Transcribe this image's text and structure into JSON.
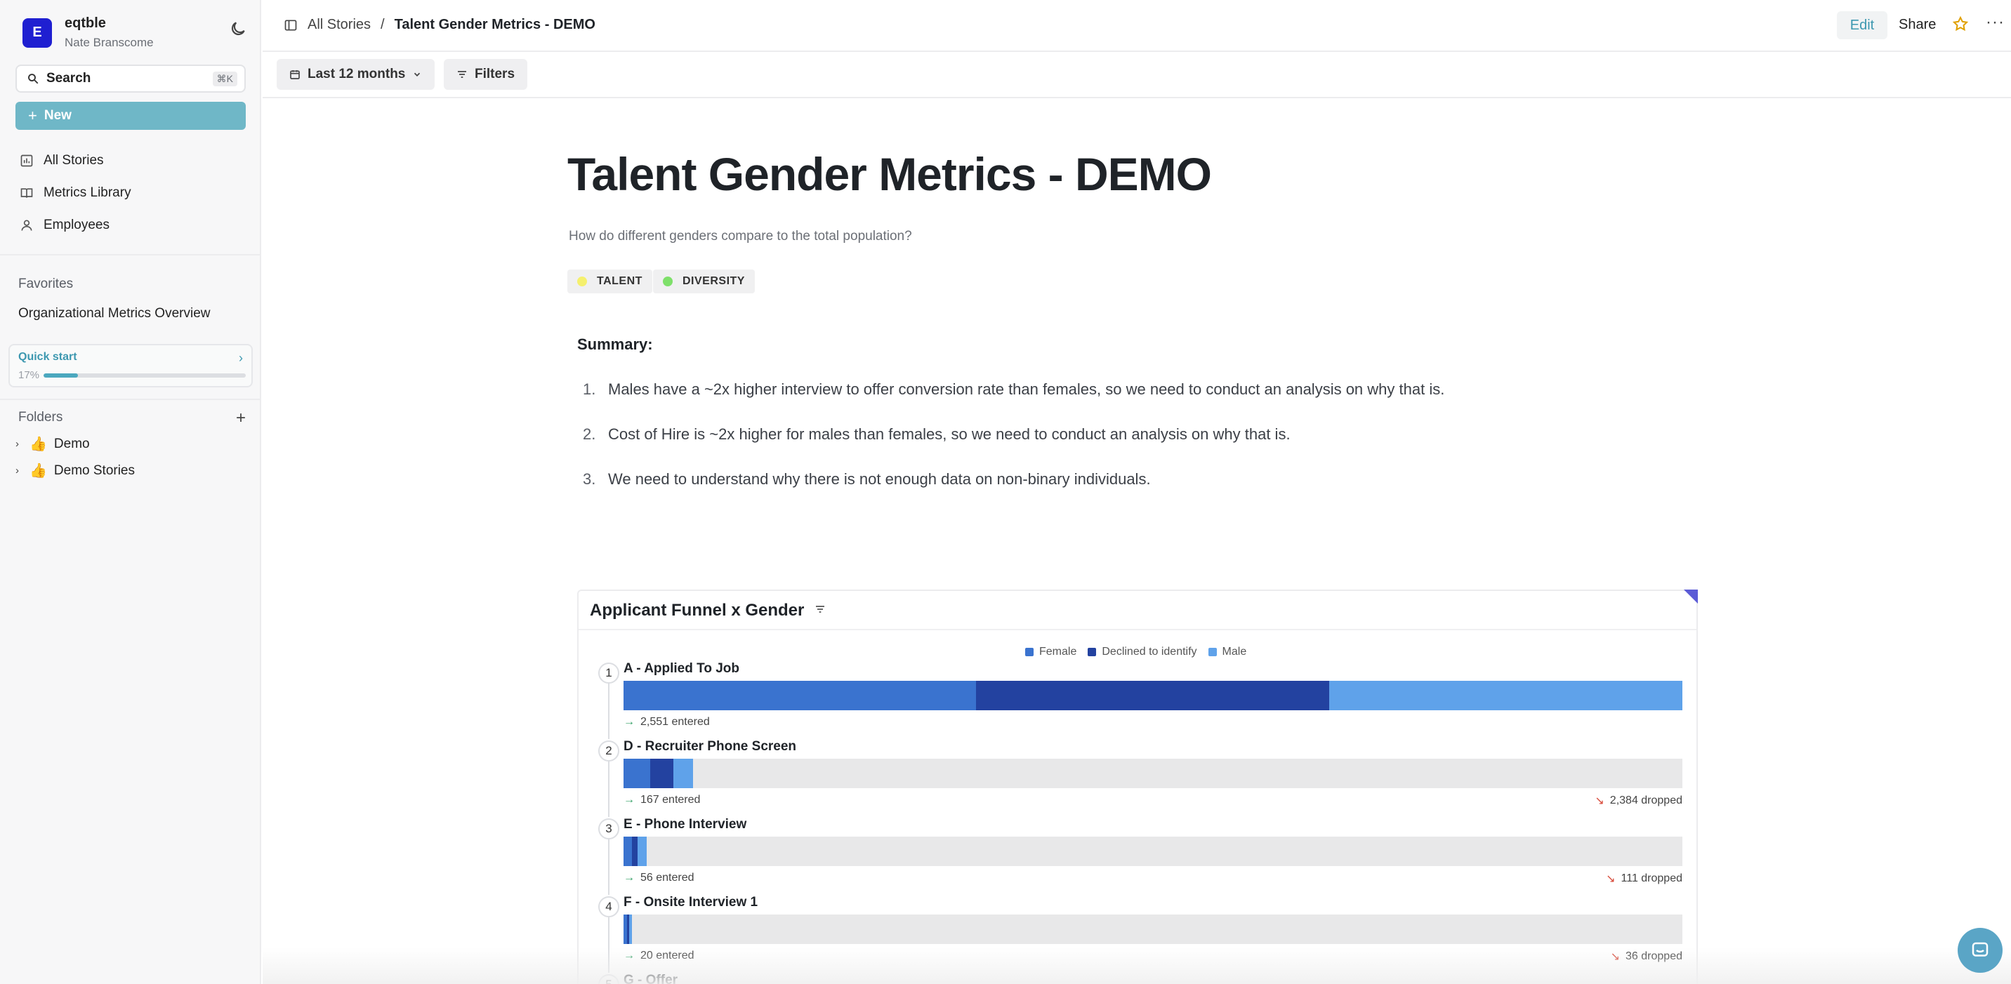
{
  "workspace": {
    "initial": "E",
    "name": "eqtble",
    "user": "Nate Branscome"
  },
  "search": {
    "label": "Search",
    "shortcut": "⌘K"
  },
  "new_button": {
    "label": "New"
  },
  "nav": [
    {
      "label": "All Stories",
      "icon": "stories-icon"
    },
    {
      "label": "Metrics Library",
      "icon": "book-icon"
    },
    {
      "label": "Employees",
      "icon": "person-icon"
    }
  ],
  "favorites": {
    "heading": "Favorites",
    "items": [
      "Organizational Metrics Overview"
    ]
  },
  "quick_start": {
    "label": "Quick start",
    "percent_label": "17%",
    "progress": 0.17
  },
  "folders": {
    "heading": "Folders",
    "items": [
      {
        "emoji": "👍",
        "label": "Demo"
      },
      {
        "emoji": "👍",
        "label": "Demo Stories"
      }
    ]
  },
  "breadcrumb": {
    "root": "All Stories",
    "separator": "/",
    "current": "Talent Gender Metrics - DEMO"
  },
  "actions": {
    "edit": "Edit",
    "share": "Share"
  },
  "filters": {
    "date_range": "Last 12 months",
    "filters_label": "Filters"
  },
  "story": {
    "title": "Talent Gender Metrics - DEMO",
    "subtitle": "How do different genders compare to the total population?",
    "tags": [
      {
        "label": "TALENT",
        "color": "#f5f06e"
      },
      {
        "label": "DIVERSITY",
        "color": "#7ee06a"
      }
    ],
    "summary_heading": "Summary:",
    "summary_items": [
      {
        "num": "1.",
        "text": "Males have a ~2x higher interview to offer conversion rate than females, so we need to conduct an analysis on why that is."
      },
      {
        "num": "2.",
        "text": "Cost of Hire is ~2x higher for males than females, so we need to conduct an analysis on why that is."
      },
      {
        "num": "3.",
        "text": "We need to understand why there is not enough data on non-binary individuals."
      }
    ]
  },
  "chart_data": {
    "type": "bar",
    "title": "Applicant Funnel x Gender",
    "legend": [
      "Female",
      "Declined to identify",
      "Male"
    ],
    "colors": {
      "Female": "#3a73cf",
      "Declined to identify": "#2342a0",
      "Male": "#5fa2ea",
      "track": "#e8e8e9"
    },
    "stages": [
      {
        "index": "1",
        "name": "A - Applied To Job",
        "entered": 2551,
        "entered_label": "2,551 entered",
        "dropped_label": "",
        "segments": [
          850,
          850,
          851
        ]
      },
      {
        "index": "2",
        "name": "D - Recruiter Phone Screen",
        "entered": 167,
        "entered_label": "167 entered",
        "dropped_label": "2,384 dropped",
        "segments": [
          65,
          55,
          47
        ]
      },
      {
        "index": "3",
        "name": "E - Phone Interview",
        "entered": 56,
        "entered_label": "56 entered",
        "dropped_label": "111 dropped",
        "segments": [
          20,
          14,
          22
        ]
      },
      {
        "index": "4",
        "name": "F - Onsite Interview 1",
        "entered": 20,
        "entered_label": "20 entered",
        "dropped_label": "36 dropped",
        "segments": [
          8,
          5,
          7
        ]
      },
      {
        "index": "5",
        "name": "G - Offer",
        "entered": null,
        "entered_label": "",
        "dropped_label": "",
        "segments": []
      }
    ]
  }
}
